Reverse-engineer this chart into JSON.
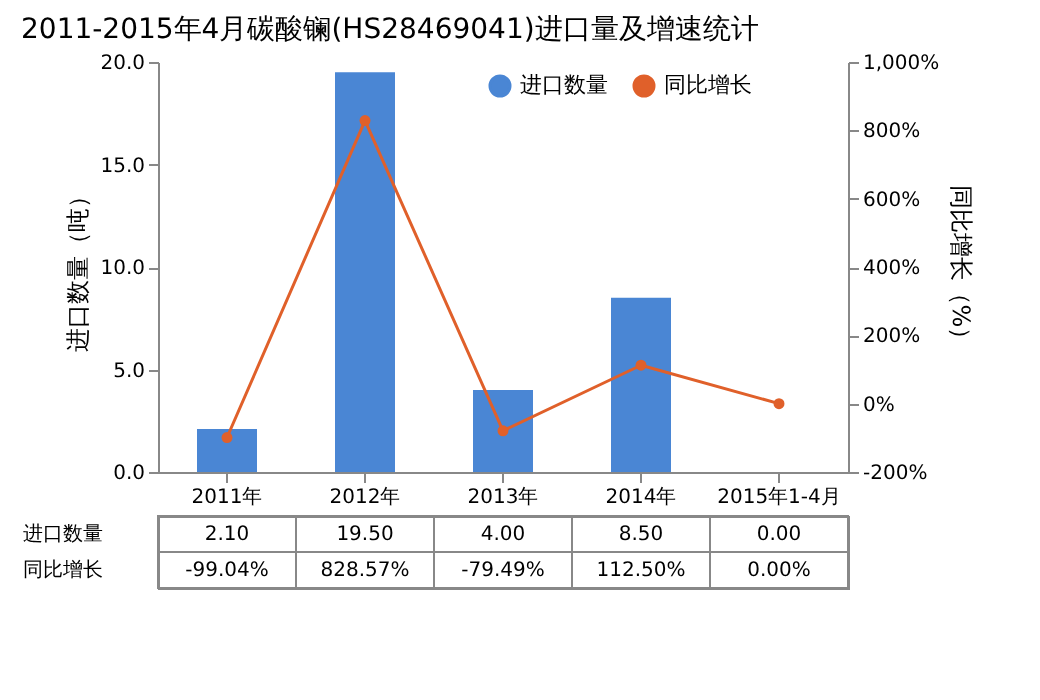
{
  "chart_data": {
    "type": "bar",
    "title": "2011-2015年4月碳酸镧(HS28469041)进口量及增速统计",
    "ylabel": "进口数量（吨）",
    "y2label": "同比增长（%）",
    "categories": [
      "2011年",
      "2012年",
      "2013年",
      "2014年",
      "2015年1-4月"
    ],
    "series": [
      {
        "name": "进口数量",
        "color": "#4a86d4",
        "values": [
          2.1,
          19.5,
          4.0,
          8.5,
          0.0
        ],
        "value_labels": [
          "2.10",
          "19.50",
          "4.00",
          "8.50",
          "0.00"
        ]
      },
      {
        "name": "同比增长",
        "type": "line",
        "axis": "y2",
        "color": "#e0602a",
        "marker": "circle",
        "line_style": "solid",
        "values": [
          -99.04,
          828.57,
          -79.49,
          112.5,
          0.0
        ],
        "value_labels": [
          "-99.04%",
          "828.57%",
          "-79.49%",
          "112.50%",
          "0.00%"
        ]
      }
    ],
    "ylim": [
      0,
      20
    ],
    "yticks": [
      {
        "value": 0,
        "label": "0.0"
      },
      {
        "value": 5,
        "label": "5.0"
      },
      {
        "value": 10,
        "label": "10.0"
      },
      {
        "value": 15,
        "label": "15.0"
      },
      {
        "value": 20,
        "label": "20.0"
      }
    ],
    "y2lim": [
      -200,
      1000
    ],
    "y2ticks": [
      {
        "value": -200,
        "label": "-200%"
      },
      {
        "value": 0,
        "label": "0%"
      },
      {
        "value": 200,
        "label": "200%"
      },
      {
        "value": 400,
        "label": "400%"
      },
      {
        "value": 600,
        "label": "600%"
      },
      {
        "value": 800,
        "label": "800%"
      },
      {
        "value": 1000,
        "label": "1,000%"
      }
    ],
    "legend": "top right",
    "grid": false
  }
}
